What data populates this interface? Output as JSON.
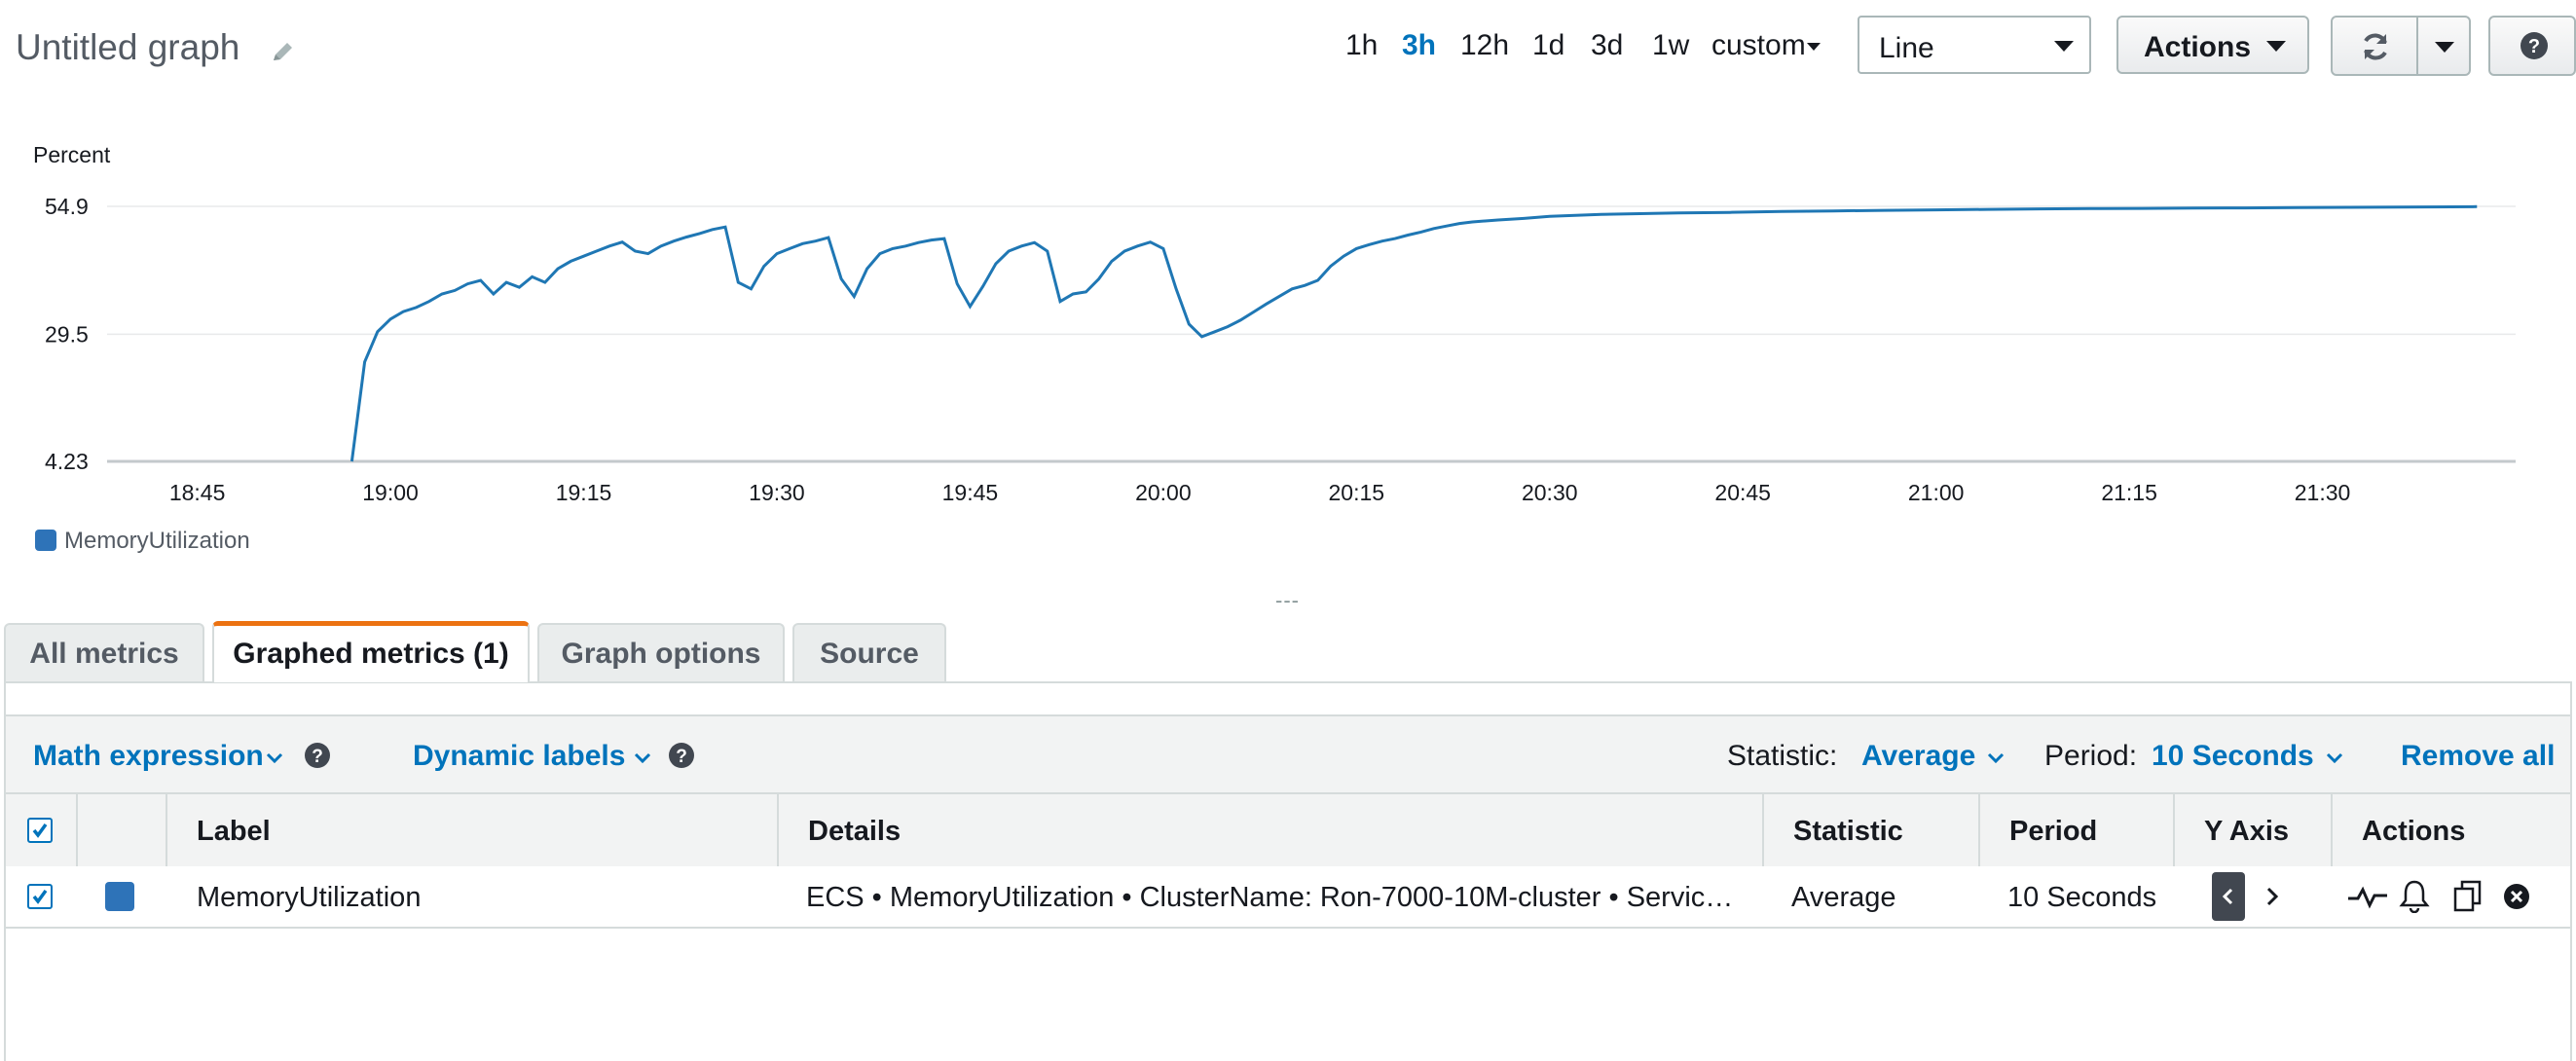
{
  "header": {
    "title": "Untitled graph",
    "time_ranges": [
      "1h",
      "3h",
      "12h",
      "1d",
      "3d",
      "1w"
    ],
    "active_range": "3h",
    "custom_label": "custom",
    "chart_type": "Line",
    "actions_label": "Actions"
  },
  "chart_data": {
    "type": "line",
    "ylabel": "Percent",
    "y_ticks": [
      "54.9",
      "29.5",
      "4.23"
    ],
    "ylim": [
      4.23,
      54.9
    ],
    "x_ticks": [
      "18:45",
      "19:00",
      "19:15",
      "19:30",
      "19:45",
      "20:00",
      "20:15",
      "20:30",
      "20:45",
      "21:00",
      "21:15",
      "21:30"
    ],
    "grid": true,
    "legend_position": "bottom-left",
    "series": [
      {
        "name": "MemoryUtilization",
        "color": "#1f77b4",
        "points": [
          [
            "18:57",
            4.23
          ],
          [
            "18:58",
            24.0
          ],
          [
            "18:59",
            30.0
          ],
          [
            "19:00",
            32.5
          ],
          [
            "19:01",
            34.0
          ],
          [
            "19:02",
            34.8
          ],
          [
            "19:03",
            36.0
          ],
          [
            "19:04",
            37.5
          ],
          [
            "19:05",
            38.2
          ],
          [
            "19:06",
            39.5
          ],
          [
            "19:07",
            40.2
          ],
          [
            "19:08",
            37.5
          ],
          [
            "19:09",
            39.8
          ],
          [
            "19:10",
            38.8
          ],
          [
            "19:11",
            40.9
          ],
          [
            "19:12",
            39.8
          ],
          [
            "19:13",
            42.5
          ],
          [
            "19:14",
            44.0
          ],
          [
            "19:15",
            45.0
          ],
          [
            "19:16",
            46.0
          ],
          [
            "19:17",
            47.0
          ],
          [
            "19:18",
            47.8
          ],
          [
            "19:19",
            46.0
          ],
          [
            "19:20",
            45.5
          ],
          [
            "19:21",
            47.0
          ],
          [
            "19:22",
            48.0
          ],
          [
            "19:23",
            48.8
          ],
          [
            "19:24",
            49.5
          ],
          [
            "19:25",
            50.3
          ],
          [
            "19:26",
            50.8
          ],
          [
            "19:27",
            39.8
          ],
          [
            "19:28",
            38.5
          ],
          [
            "19:29",
            43.0
          ],
          [
            "19:30",
            45.5
          ],
          [
            "19:31",
            46.5
          ],
          [
            "19:32",
            47.5
          ],
          [
            "19:33",
            48.0
          ],
          [
            "19:34",
            48.7
          ],
          [
            "19:35",
            40.5
          ],
          [
            "19:36",
            37.0
          ],
          [
            "19:37",
            42.5
          ],
          [
            "19:38",
            45.5
          ],
          [
            "19:39",
            46.5
          ],
          [
            "19:40",
            47.0
          ],
          [
            "19:41",
            47.7
          ],
          [
            "19:42",
            48.2
          ],
          [
            "19:43",
            48.5
          ],
          [
            "19:44",
            39.5
          ],
          [
            "19:45",
            35.0
          ],
          [
            "19:46",
            39.0
          ],
          [
            "19:47",
            43.5
          ],
          [
            "19:48",
            46.0
          ],
          [
            "19:49",
            47.0
          ],
          [
            "19:50",
            47.7
          ],
          [
            "19:51",
            46.0
          ],
          [
            "19:52",
            36.0
          ],
          [
            "19:53",
            37.5
          ],
          [
            "19:54",
            37.9
          ],
          [
            "19:55",
            40.5
          ],
          [
            "19:56",
            44.0
          ],
          [
            "19:57",
            46.0
          ],
          [
            "19:58",
            47.0
          ],
          [
            "19:59",
            47.8
          ],
          [
            "20:00",
            46.5
          ],
          [
            "20:01",
            38.5
          ],
          [
            "20:02",
            31.5
          ],
          [
            "20:03",
            29.0
          ],
          [
            "20:04",
            30.0
          ],
          [
            "20:05",
            31.0
          ],
          [
            "20:06",
            32.3
          ],
          [
            "20:07",
            33.9
          ],
          [
            "20:08",
            35.5
          ],
          [
            "20:09",
            37.0
          ],
          [
            "20:10",
            38.5
          ],
          [
            "20:11",
            39.2
          ],
          [
            "20:12",
            40.2
          ],
          [
            "20:13",
            43.0
          ],
          [
            "20:14",
            45.0
          ],
          [
            "20:15",
            46.5
          ],
          [
            "20:16",
            47.3
          ],
          [
            "20:17",
            48.0
          ],
          [
            "20:18",
            48.5
          ],
          [
            "20:19",
            49.2
          ],
          [
            "20:20",
            49.8
          ],
          [
            "20:21",
            50.5
          ],
          [
            "20:22",
            51.0
          ],
          [
            "20:23",
            51.5
          ],
          [
            "20:24",
            51.8
          ],
          [
            "20:25",
            52.0
          ],
          [
            "20:26",
            52.2
          ],
          [
            "20:28",
            52.5
          ],
          [
            "20:30",
            52.9
          ],
          [
            "20:32",
            53.1
          ],
          [
            "20:34",
            53.3
          ],
          [
            "20:36",
            53.4
          ],
          [
            "20:38",
            53.5
          ],
          [
            "20:40",
            53.6
          ],
          [
            "20:44",
            53.7
          ],
          [
            "20:48",
            53.9
          ],
          [
            "20:52",
            54.0
          ],
          [
            "20:56",
            54.1
          ],
          [
            "21:00",
            54.2
          ],
          [
            "21:04",
            54.3
          ],
          [
            "21:08",
            54.4
          ],
          [
            "21:12",
            54.45
          ],
          [
            "21:16",
            54.5
          ],
          [
            "21:20",
            54.55
          ],
          [
            "21:24",
            54.6
          ],
          [
            "21:28",
            54.65
          ],
          [
            "21:32",
            54.7
          ],
          [
            "21:36",
            54.75
          ],
          [
            "21:40",
            54.8
          ],
          [
            "21:42",
            54.85
          ]
        ]
      }
    ]
  },
  "legend": {
    "label": "MemoryUtilization",
    "color": "#2e73b8"
  },
  "resize_handle": "---",
  "tabs": [
    {
      "label": "All metrics"
    },
    {
      "label": "Graphed metrics (1)"
    },
    {
      "label": "Graph options"
    },
    {
      "label": "Source"
    }
  ],
  "toolbar": {
    "math_expression": "Math expression",
    "dynamic_labels": "Dynamic labels",
    "statistic_label": "Statistic:",
    "statistic_value": "Average",
    "period_label": "Period:",
    "period_value": "10 Seconds",
    "remove_all": "Remove all"
  },
  "table": {
    "columns": [
      "Label",
      "Details",
      "Statistic",
      "Period",
      "Y Axis",
      "Actions"
    ],
    "rows": [
      {
        "checked": true,
        "color": "#2e73b8",
        "label": "MemoryUtilization",
        "details": "ECS • MemoryUtilization • ClusterName: Ron-7000-10M-cluster • Servic…",
        "statistic": "Average",
        "period": "10 Seconds"
      }
    ]
  }
}
